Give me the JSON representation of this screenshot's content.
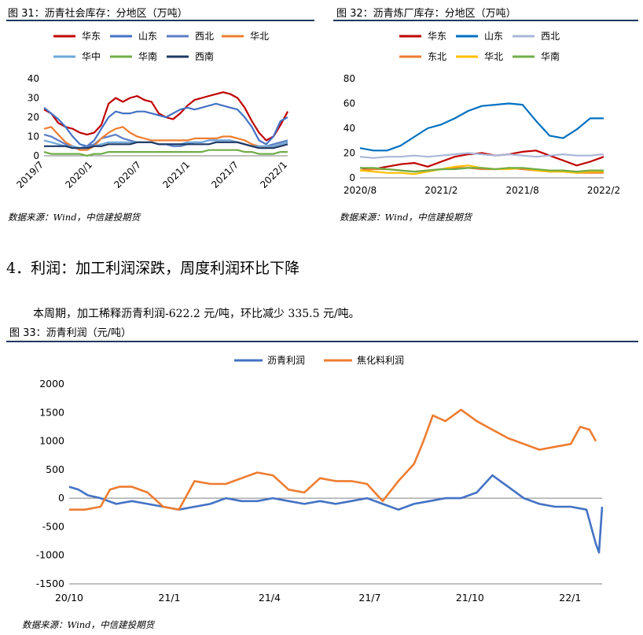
{
  "fig31": {
    "caption": "图 31：沥青社会库存：分地区（万吨）",
    "source": "数据来源：Wind，中信建投期货",
    "chart_data": {
      "type": "line",
      "title": "沥青社会库存：分地区（万吨）",
      "ylim": [
        0,
        40
      ],
      "yticks": [
        "0",
        "10",
        "20",
        "30",
        "40"
      ],
      "xticks": [
        "2019/7",
        "2020/1",
        "2020/7",
        "2021/1",
        "2021/7",
        "2022/1"
      ],
      "x_range": [
        0,
        34
      ],
      "series": [
        {
          "name": "华东",
          "color": "#c00000",
          "x": [
            0,
            1,
            2,
            3,
            4,
            5,
            6,
            7,
            8,
            9,
            10,
            11,
            12,
            13,
            14,
            15,
            16,
            17,
            18,
            19,
            20,
            21,
            22,
            23,
            24,
            25,
            26,
            27,
            28,
            29,
            30,
            31,
            32,
            33,
            34
          ],
          "values": [
            24,
            22,
            17,
            15,
            14,
            12,
            11,
            12,
            16,
            27,
            30,
            28,
            30,
            31,
            29,
            28,
            22,
            20,
            19,
            22,
            26,
            29,
            30,
            31,
            32,
            33,
            32,
            30,
            25,
            18,
            12,
            8,
            10,
            16,
            23
          ]
        },
        {
          "name": "山东",
          "color": "#4472c4",
          "x": [
            0,
            1,
            2,
            3,
            4,
            5,
            6,
            7,
            8,
            9,
            10,
            11,
            12,
            13,
            14,
            15,
            16,
            17,
            18,
            19,
            20,
            21,
            22,
            23,
            24,
            25,
            26,
            27,
            28,
            29,
            30,
            31,
            32,
            33,
            34
          ],
          "values": [
            25,
            22,
            19,
            15,
            10,
            6,
            5,
            8,
            14,
            20,
            23,
            22,
            22,
            23,
            23,
            22,
            21,
            20,
            22,
            24,
            25,
            24,
            25,
            26,
            27,
            26,
            25,
            24,
            20,
            15,
            8,
            6,
            10,
            18,
            20
          ]
        },
        {
          "name": "西北",
          "color": "#5b7ec6",
          "x": [
            0,
            1,
            2,
            3,
            4,
            5,
            6,
            7,
            8,
            9,
            10,
            11,
            12,
            13,
            14,
            15,
            16,
            17,
            18,
            19,
            20,
            21,
            22,
            23,
            24,
            25,
            26,
            27,
            28,
            29,
            30,
            31,
            32,
            33,
            34
          ],
          "values": [
            11,
            10,
            8,
            6,
            5,
            4,
            5,
            6,
            9,
            10,
            11,
            9,
            8,
            7,
            7,
            7,
            6,
            6,
            5,
            5,
            6,
            7,
            7,
            8,
            8,
            8,
            8,
            7,
            6,
            5,
            5,
            5,
            6,
            7,
            8
          ]
        },
        {
          "name": "华北",
          "color": "#ed7d31",
          "x": [
            0,
            1,
            2,
            3,
            4,
            5,
            6,
            7,
            8,
            9,
            10,
            11,
            12,
            13,
            14,
            15,
            16,
            17,
            18,
            19,
            20,
            21,
            22,
            23,
            24,
            25,
            26,
            27,
            28,
            29,
            30,
            31,
            32,
            33,
            34
          ],
          "values": [
            14,
            15,
            11,
            7,
            5,
            3,
            3,
            5,
            9,
            12,
            14,
            15,
            12,
            10,
            9,
            8,
            8,
            8,
            8,
            8,
            8,
            9,
            9,
            9,
            9,
            10,
            10,
            9,
            8,
            6,
            5,
            4,
            5,
            6,
            7
          ]
        },
        {
          "name": "华中",
          "color": "#70a8dc",
          "x": [
            0,
            1,
            2,
            3,
            4,
            5,
            6,
            7,
            8,
            9,
            10,
            11,
            12,
            13,
            14,
            15,
            16,
            17,
            18,
            19,
            20,
            21,
            22,
            23,
            24,
            25,
            26,
            27,
            28,
            29,
            30,
            31,
            32,
            33,
            34
          ],
          "values": [
            8,
            7,
            6,
            5,
            5,
            4,
            4,
            5,
            6,
            7,
            7,
            7,
            7,
            7,
            7,
            7,
            6,
            6,
            6,
            6,
            7,
            7,
            7,
            8,
            8,
            8,
            8,
            7,
            6,
            5,
            5,
            5,
            5,
            6,
            7
          ]
        },
        {
          "name": "华南",
          "color": "#70ad47",
          "x": [
            0,
            1,
            2,
            3,
            4,
            5,
            6,
            7,
            8,
            9,
            10,
            11,
            12,
            13,
            14,
            15,
            16,
            17,
            18,
            19,
            20,
            21,
            22,
            23,
            24,
            25,
            26,
            27,
            28,
            29,
            30,
            31,
            32,
            33,
            34
          ],
          "values": [
            2,
            1,
            1,
            1,
            1,
            1,
            0,
            1,
            1,
            2,
            2,
            2,
            2,
            2,
            2,
            2,
            2,
            2,
            2,
            2,
            2,
            2,
            2,
            3,
            3,
            3,
            3,
            3,
            2,
            2,
            1,
            1,
            1,
            2,
            2
          ]
        },
        {
          "name": "西南",
          "color": "#1f3864",
          "x": [
            0,
            1,
            2,
            3,
            4,
            5,
            6,
            7,
            8,
            9,
            10,
            11,
            12,
            13,
            14,
            15,
            16,
            17,
            18,
            19,
            20,
            21,
            22,
            23,
            24,
            25,
            26,
            27,
            28,
            29,
            30,
            31,
            32,
            33,
            34
          ],
          "values": [
            5,
            5,
            5,
            5,
            4,
            4,
            4,
            5,
            5,
            6,
            6,
            6,
            6,
            7,
            7,
            7,
            6,
            6,
            6,
            6,
            6,
            6,
            6,
            6,
            7,
            7,
            7,
            7,
            6,
            5,
            4,
            4,
            4,
            5,
            6
          ]
        }
      ]
    }
  },
  "fig32": {
    "caption": "图 32：沥青炼厂库存：分地区（万吨）",
    "source": "数据来源：Wind，中信建投期货",
    "chart_data": {
      "type": "line",
      "title": "沥青炼厂库存：分地区（万吨）",
      "ylim": [
        0,
        80
      ],
      "yticks": [
        "0",
        "20",
        "40",
        "60",
        "80"
      ],
      "xticks": [
        "2020/8",
        "2021/2",
        "2021/8",
        "2022/2"
      ],
      "x_range": [
        0,
        18
      ],
      "series": [
        {
          "name": "华东",
          "color": "#c00000",
          "x": [
            0,
            1,
            2,
            3,
            4,
            5,
            6,
            7,
            8,
            9,
            10,
            11,
            12,
            13,
            14,
            15,
            16,
            17,
            18
          ],
          "values": [
            8,
            7,
            9,
            11,
            12,
            9,
            13,
            17,
            19,
            20,
            18,
            19,
            21,
            22,
            18,
            14,
            10,
            13,
            17
          ]
        },
        {
          "name": "山东",
          "color": "#0070c0",
          "x": [
            0,
            1,
            2,
            3,
            4,
            5,
            6,
            7,
            8,
            9,
            10,
            11,
            12,
            13,
            14,
            15,
            16,
            17,
            18
          ],
          "values": [
            24,
            22,
            22,
            26,
            33,
            40,
            43,
            48,
            54,
            58,
            59,
            60,
            59,
            46,
            34,
            32,
            39,
            48,
            48
          ]
        },
        {
          "name": "西北",
          "color": "#a9b7d8",
          "x": [
            0,
            1,
            2,
            3,
            4,
            5,
            6,
            7,
            8,
            9,
            10,
            11,
            12,
            13,
            14,
            15,
            16,
            17,
            18
          ],
          "values": [
            17,
            16,
            17,
            17,
            18,
            17,
            18,
            19,
            20,
            19,
            18,
            19,
            18,
            17,
            18,
            19,
            18,
            18,
            19
          ]
        },
        {
          "name": "东北",
          "color": "#ed7d31",
          "x": [
            0,
            1,
            2,
            3,
            4,
            5,
            6,
            7,
            8,
            9,
            10,
            11,
            12,
            13,
            14,
            15,
            16,
            17,
            18
          ],
          "values": [
            6,
            7,
            7,
            6,
            5,
            6,
            7,
            8,
            8,
            7,
            7,
            8,
            7,
            6,
            5,
            5,
            4,
            4,
            4
          ]
        },
        {
          "name": "华北",
          "color": "#ffc000",
          "x": [
            0,
            1,
            2,
            3,
            4,
            5,
            6,
            7,
            8,
            9,
            10,
            11,
            12,
            13,
            14,
            15,
            16,
            17,
            18
          ],
          "values": [
            6,
            5,
            4,
            4,
            3,
            5,
            7,
            9,
            10,
            8,
            7,
            7,
            8,
            6,
            5,
            5,
            4,
            5,
            5
          ]
        },
        {
          "name": "华南",
          "color": "#70ad47",
          "x": [
            0,
            1,
            2,
            3,
            4,
            5,
            6,
            7,
            8,
            9,
            10,
            11,
            12,
            13,
            14,
            15,
            16,
            17,
            18
          ],
          "values": [
            8,
            8,
            7,
            6,
            5,
            6,
            7,
            7,
            8,
            8,
            7,
            8,
            8,
            7,
            6,
            6,
            5,
            6,
            6
          ]
        }
      ]
    }
  },
  "section": {
    "heading": "4．利润：加工利润深跌，周度利润环比下降",
    "paragraph": "本周期，加工稀释沥青利润-622.2 元/吨，环比减少 335.5 元/吨。"
  },
  "fig33": {
    "caption": "图 33：沥青利润（元/吨）",
    "source": "数据来源：Wind，中信建投期货",
    "chart_data": {
      "type": "line",
      "title": "沥青利润（元/吨）",
      "ylim": [
        -1500,
        2000
      ],
      "yticks": [
        "-1500",
        "-1000",
        "-500",
        "0",
        "500",
        "1000",
        "1500",
        "2000"
      ],
      "xticks": [
        "20/10",
        "21/1",
        "21/4",
        "21/7",
        "21/10",
        "22/1"
      ],
      "x_range": [
        0,
        17
      ],
      "series": [
        {
          "name": "沥青利润",
          "color": "#4472c4",
          "x": [
            0,
            0.3,
            0.6,
            1,
            1.5,
            2,
            2.5,
            3,
            3.5,
            4,
            4.5,
            5,
            5.5,
            6,
            6.5,
            7,
            7.5,
            8,
            8.5,
            9,
            9.5,
            10,
            10.5,
            11,
            11.5,
            12,
            12.5,
            13,
            13.5,
            14,
            14.5,
            15,
            15.5,
            16,
            16.5,
            16.8,
            16.9,
            17
          ],
          "values": [
            200,
            150,
            50,
            0,
            -100,
            -50,
            -100,
            -150,
            -200,
            -150,
            -100,
            0,
            -50,
            -50,
            0,
            -50,
            -100,
            -50,
            -100,
            -50,
            0,
            -100,
            -200,
            -100,
            -50,
            0,
            0,
            100,
            400,
            200,
            0,
            -100,
            -150,
            -150,
            -200,
            -800,
            -950,
            -150
          ]
        },
        {
          "name": "焦化料利润",
          "color": "#ed7d31",
          "x": [
            0,
            0.5,
            1,
            1.3,
            1.6,
            2,
            2.5,
            3,
            3.5,
            4,
            4.5,
            5,
            5.5,
            6,
            6.5,
            7,
            7.5,
            8,
            8.5,
            9,
            9.5,
            10,
            10.5,
            11,
            11.3,
            11.6,
            12,
            12.5,
            13,
            13.5,
            14,
            14.5,
            15,
            15.5,
            16,
            16.3,
            16.6,
            16.8
          ],
          "values": [
            -200,
            -200,
            -150,
            150,
            200,
            200,
            100,
            -150,
            -200,
            300,
            250,
            250,
            350,
            450,
            400,
            150,
            100,
            350,
            300,
            300,
            250,
            -50,
            300,
            600,
            1000,
            1450,
            1350,
            1550,
            1350,
            1200,
            1050,
            950,
            850,
            900,
            950,
            1250,
            1200,
            1000
          ]
        }
      ]
    }
  }
}
